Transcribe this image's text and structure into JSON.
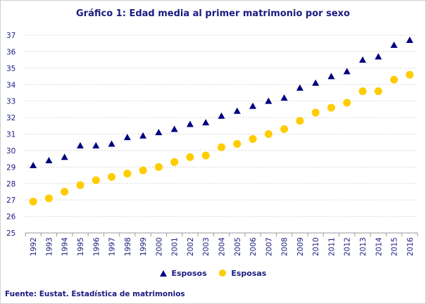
{
  "chart_data": {
    "type": "scatter",
    "title": "Gráfico 1: Edad media al primer matrimonio por sexo",
    "source": "Fuente: Eustat. Estadística de matrimonios",
    "categories": [
      "1992",
      "1993",
      "1994",
      "1995",
      "1996",
      "1997",
      "1998",
      "1999",
      "2000",
      "2001",
      "2002",
      "2003",
      "2004",
      "2005",
      "2006",
      "2007",
      "2008",
      "2009",
      "2010",
      "2011",
      "2012",
      "2013",
      "2014",
      "2015",
      "2016"
    ],
    "ylim": [
      25,
      37
    ],
    "yticks": [
      25,
      26,
      27,
      28,
      29,
      30,
      31,
      32,
      33,
      34,
      35,
      36,
      37
    ],
    "grid": true,
    "legend": "bottom",
    "series": [
      {
        "name": "Esposos",
        "marker": "triangle",
        "color": "#000080",
        "values": [
          29.1,
          29.4,
          29.6,
          30.3,
          30.3,
          30.4,
          30.8,
          30.9,
          31.1,
          31.3,
          31.6,
          31.7,
          32.1,
          32.4,
          32.7,
          33.0,
          33.2,
          33.8,
          34.1,
          34.5,
          34.8,
          35.5,
          35.7,
          36.4,
          36.7
        ]
      },
      {
        "name": "Esposas",
        "marker": "circle",
        "color": "#FFCC00",
        "values": [
          26.9,
          27.1,
          27.5,
          27.9,
          28.2,
          28.4,
          28.6,
          28.8,
          29.0,
          29.3,
          29.6,
          29.7,
          30.2,
          30.4,
          30.7,
          31.0,
          31.3,
          31.8,
          32.3,
          32.6,
          32.9,
          33.6,
          33.6,
          34.3,
          34.6
        ]
      }
    ]
  }
}
